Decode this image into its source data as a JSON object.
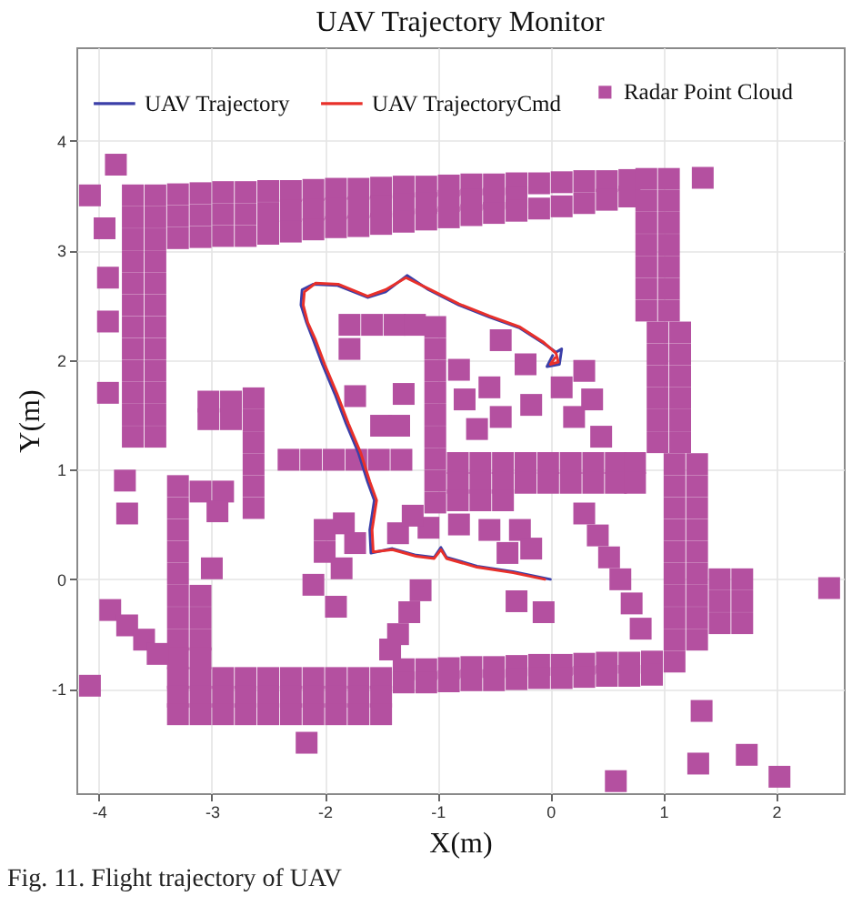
{
  "chart_data": {
    "type": "scatter",
    "title": "UAV Trajectory Monitor",
    "xlabel": "X(m)",
    "ylabel": "Y(m)",
    "annotations": [
      "Fig. 11. Flight trajectory of UAV"
    ],
    "xlim": [
      -4.2,
      2.6
    ],
    "ylim": [
      -1.95,
      4.85
    ],
    "xticks": [
      -4,
      -3,
      -2,
      -1,
      0,
      1,
      2
    ],
    "yticks": [
      -1,
      0,
      1,
      2,
      3,
      4
    ],
    "grid": true,
    "legend": "top",
    "series": [
      {
        "name": "UAV Trajectory",
        "type": "line",
        "color": "#3b3fa8",
        "x": [
          0.0,
          -0.33,
          -0.65,
          -0.92,
          -0.97,
          -1.03,
          -1.19,
          -1.4,
          -1.59,
          -1.6,
          -1.56,
          -1.62,
          -1.7,
          -1.81,
          -1.91,
          -2.02,
          -2.1,
          -2.16,
          -2.21,
          -2.2,
          -2.1,
          -1.89,
          -1.62,
          -1.46,
          -1.27,
          -1.08,
          -0.81,
          -0.54,
          -0.27,
          -0.06,
          0.05,
          0.1,
          0.08,
          -0.03,
          0.02
        ],
        "values": [
          0.0,
          0.07,
          0.12,
          0.2,
          0.29,
          0.2,
          0.22,
          0.28,
          0.24,
          0.45,
          0.72,
          0.89,
          1.15,
          1.42,
          1.69,
          1.96,
          2.18,
          2.34,
          2.5,
          2.64,
          2.69,
          2.68,
          2.57,
          2.62,
          2.77,
          2.64,
          2.5,
          2.39,
          2.29,
          2.15,
          2.07,
          2.1,
          1.96,
          1.94,
          2.04
        ]
      },
      {
        "name": "UAV TrajectoryCmd",
        "type": "line",
        "color": "#e8302a",
        "x": [
          -0.05,
          -0.33,
          -0.65,
          -0.92,
          -0.97,
          -1.03,
          -1.19,
          -1.4,
          -1.57,
          -1.58,
          -1.54,
          -1.6,
          -1.68,
          -1.79,
          -1.89,
          -2.0,
          -2.08,
          -2.15,
          -2.19,
          -2.18,
          -2.08,
          -1.88,
          -1.62,
          -1.46,
          -1.28,
          -1.08,
          -0.81,
          -0.54,
          -0.27,
          -0.06,
          0.05,
          0.07,
          0.0,
          0.04
        ],
        "values": [
          0.0,
          0.06,
          0.11,
          0.19,
          0.27,
          0.19,
          0.21,
          0.27,
          0.25,
          0.45,
          0.72,
          0.89,
          1.15,
          1.42,
          1.69,
          1.96,
          2.18,
          2.34,
          2.5,
          2.62,
          2.7,
          2.69,
          2.58,
          2.64,
          2.75,
          2.65,
          2.51,
          2.4,
          2.3,
          2.16,
          2.06,
          1.98,
          1.96,
          2.02
        ]
      },
      {
        "name": "Radar Point Cloud",
        "color": "#b450a0",
        "marker": "square",
        "x": [
          -3.7,
          -3.7,
          -3.7,
          -3.7,
          -3.7,
          -3.7,
          -3.7,
          -3.7,
          -3.7,
          -3.7,
          -3.7,
          -3.7,
          -3.5,
          -3.5,
          -3.5,
          -3.5,
          -3.5,
          -3.5,
          -3.5,
          -3.5,
          -3.5,
          -3.5,
          -3.5,
          -3.5,
          -3.3,
          -3.3,
          -3.3,
          -3.1,
          -3.1,
          -3.1,
          -2.9,
          -2.9,
          -2.9,
          -2.7,
          -2.7,
          -2.7,
          -2.5,
          -2.5,
          -2.5,
          -2.3,
          -2.3,
          -2.3,
          -2.1,
          -2.1,
          -2.1,
          -1.9,
          -1.9,
          -1.9,
          -1.7,
          -1.7,
          -1.7,
          -1.5,
          -1.5,
          -1.5,
          -1.3,
          -1.3,
          -1.3,
          -1.1,
          -1.1,
          -1.1,
          -0.9,
          -0.9,
          -0.9,
          -0.7,
          -0.7,
          -0.7,
          -0.5,
          -0.5,
          -0.5,
          -0.3,
          -0.3,
          -0.3,
          -0.1,
          -0.1,
          0.1,
          0.1,
          0.3,
          0.3,
          0.5,
          0.5,
          0.7,
          0.7,
          0.85,
          0.85,
          0.85,
          0.85,
          0.85,
          0.85,
          0.85,
          1.05,
          1.05,
          1.05,
          1.05,
          1.05,
          1.05,
          1.05,
          0.95,
          0.95,
          0.95,
          0.95,
          0.95,
          0.95,
          1.15,
          1.15,
          1.15,
          1.15,
          1.15,
          1.15,
          1.1,
          1.1,
          1.1,
          1.1,
          1.1,
          1.1,
          1.1,
          1.1,
          1.1,
          1.1,
          1.3,
          1.3,
          1.3,
          1.3,
          1.3,
          1.3,
          1.3,
          1.3,
          1.3,
          1.5,
          1.5,
          1.5,
          1.7,
          1.7,
          1.7,
          -3.3,
          -3.3,
          -3.3,
          -3.1,
          -3.1,
          -3.1,
          -2.9,
          -2.9,
          -2.9,
          -2.7,
          -2.7,
          -2.7,
          -2.5,
          -2.5,
          -2.5,
          -2.3,
          -2.3,
          -2.3,
          -2.1,
          -2.1,
          -2.1,
          -1.9,
          -1.9,
          -1.9,
          -1.7,
          -1.7,
          -1.7,
          -1.5,
          -1.5,
          -1.5,
          -1.3,
          -1.3,
          -1.1,
          -1.1,
          -0.9,
          -0.9,
          -0.7,
          -0.7,
          -0.5,
          -0.5,
          -0.3,
          -0.3,
          -0.1,
          -0.1,
          0.1,
          0.1,
          0.3,
          0.3,
          0.5,
          0.5,
          0.7,
          0.7,
          0.9,
          0.9,
          -3.3,
          -3.3,
          -3.3,
          -3.3,
          -3.3,
          -3.3,
          -3.3,
          -3.3,
          -3.3,
          -3.1,
          -3.1,
          -3.1,
          -3.1,
          -3.1,
          -2.9,
          -2.95,
          -2.63,
          -2.63,
          -2.63,
          -2.63,
          -2.63,
          -2.63,
          -3.03,
          -2.83,
          -3.03,
          -2.83,
          -2.32,
          -2.12,
          -1.92,
          -1.72,
          -1.52,
          -1.32,
          -1.02,
          -1.02,
          -1.02,
          -1.02,
          -1.02,
          -1.02,
          -1.02,
          -1.02,
          -1.02,
          -0.82,
          -0.82,
          -0.62,
          -0.62,
          -0.42,
          -0.42,
          -0.22,
          -0.22,
          -0.02,
          -0.02,
          0.18,
          0.18,
          0.38,
          0.38,
          0.58,
          0.58,
          0.75,
          0.75,
          -0.82,
          -0.62,
          -0.42,
          -1.78,
          -1.58,
          -1.38,
          -1.2,
          -1.78,
          -1.5,
          -1.34,
          -1.3,
          -1.73,
          -0.81,
          -0.76,
          -0.54,
          -0.44,
          -0.65,
          -0.22,
          -0.17,
          0.1,
          0.21,
          -0.44,
          0.3,
          0.37,
          0.45,
          -1.83,
          -1.73,
          -2.0,
          -1.35,
          -1.08,
          -1.22,
          -0.81,
          -0.54,
          -0.27,
          -0.17,
          -0.38,
          -1.15,
          -1.25,
          -1.35,
          -1.42,
          -2.0,
          -1.85,
          -2.1,
          -1.9,
          0.3,
          0.42,
          0.52,
          0.62,
          0.72,
          0.8,
          -0.3,
          -0.06,
          -3.0,
          -4.08,
          -3.85,
          1.35,
          2.47,
          -4.08,
          -2.16,
          0.58,
          1.31,
          1.74,
          2.03,
          1.34,
          -3.95,
          -3.92,
          -3.92,
          -3.92,
          -3.77,
          -3.75,
          -3.9,
          -3.75,
          -3.6,
          -3.48
        ],
        "values": [
          3.5,
          3.3,
          3.1,
          2.9,
          2.7,
          2.5,
          2.3,
          2.1,
          1.9,
          1.7,
          1.5,
          1.3,
          3.5,
          3.3,
          3.1,
          2.9,
          2.7,
          2.5,
          2.3,
          2.1,
          1.9,
          1.7,
          1.5,
          1.3,
          3.51,
          3.31,
          3.11,
          3.52,
          3.32,
          3.12,
          3.53,
          3.33,
          3.13,
          3.53,
          3.33,
          3.13,
          3.54,
          3.34,
          3.15,
          3.54,
          3.36,
          3.17,
          3.55,
          3.37,
          3.19,
          3.56,
          3.38,
          3.21,
          3.56,
          3.39,
          3.22,
          3.57,
          3.4,
          3.24,
          3.58,
          3.42,
          3.26,
          3.58,
          3.43,
          3.28,
          3.59,
          3.45,
          3.3,
          3.6,
          3.46,
          3.32,
          3.6,
          3.47,
          3.34,
          3.61,
          3.48,
          3.36,
          3.61,
          3.38,
          3.62,
          3.4,
          3.63,
          3.43,
          3.63,
          3.46,
          3.64,
          3.49,
          3.65,
          3.45,
          3.25,
          3.05,
          2.85,
          2.65,
          2.45,
          3.65,
          3.45,
          3.25,
          3.05,
          2.85,
          2.65,
          2.45,
          2.25,
          2.05,
          1.85,
          1.65,
          1.45,
          1.25,
          2.25,
          2.05,
          1.85,
          1.65,
          1.45,
          1.25,
          1.05,
          0.85,
          0.65,
          0.45,
          0.25,
          0.05,
          -0.15,
          -0.35,
          -0.55,
          -0.75,
          1.05,
          0.85,
          0.65,
          0.45,
          0.25,
          0.05,
          -0.15,
          -0.35,
          -0.55,
          0.0,
          -0.2,
          -0.4,
          0.0,
          -0.2,
          -0.4,
          -0.9,
          -1.07,
          -1.23,
          -0.9,
          -1.07,
          -1.23,
          -0.9,
          -1.07,
          -1.23,
          -0.9,
          -1.07,
          -1.23,
          -0.9,
          -1.07,
          -1.23,
          -0.9,
          -1.07,
          -1.23,
          -0.9,
          -1.07,
          -1.23,
          -0.9,
          -1.07,
          -1.23,
          -0.9,
          -1.07,
          -1.23,
          -0.9,
          -1.07,
          -1.23,
          -0.82,
          -0.94,
          -0.82,
          -0.94,
          -0.81,
          -0.93,
          -0.8,
          -0.92,
          -0.8,
          -0.92,
          -0.79,
          -0.91,
          -0.78,
          -0.9,
          -0.78,
          -0.9,
          -0.77,
          -0.89,
          -0.76,
          -0.88,
          -0.76,
          -0.88,
          -0.75,
          -0.87,
          0.85,
          0.65,
          0.45,
          0.25,
          0.05,
          -0.15,
          -0.35,
          -0.55,
          -0.72,
          -0.15,
          -0.35,
          -0.55,
          -0.72,
          0.8,
          0.8,
          0.62,
          1.65,
          1.45,
          1.25,
          1.05,
          0.85,
          0.65,
          1.62,
          1.62,
          1.46,
          1.46,
          1.09,
          1.09,
          1.09,
          1.09,
          1.09,
          1.09,
          2.3,
          2.1,
          1.9,
          1.7,
          1.5,
          1.3,
          1.1,
          0.9,
          0.7,
          1.06,
          0.88,
          1.06,
          0.88,
          1.06,
          0.88,
          1.06,
          0.88,
          1.06,
          0.88,
          1.06,
          0.88,
          1.06,
          0.88,
          1.06,
          0.88,
          1.06,
          0.88,
          0.72,
          0.72,
          0.72,
          2.32,
          2.32,
          2.32,
          2.32,
          2.1,
          1.4,
          1.4,
          1.69,
          1.67,
          1.91,
          1.64,
          1.75,
          1.48,
          1.37,
          1.96,
          1.59,
          1.75,
          1.48,
          2.18,
          1.9,
          1.64,
          1.3,
          0.51,
          0.33,
          0.45,
          0.42,
          0.47,
          0.58,
          0.5,
          0.45,
          0.45,
          0.28,
          0.24,
          -0.1,
          -0.3,
          -0.5,
          -0.64,
          0.25,
          0.1,
          -0.05,
          -0.25,
          0.6,
          0.4,
          0.2,
          0.0,
          -0.22,
          -0.45,
          -0.2,
          -0.3,
          0.1,
          3.5,
          3.78,
          3.66,
          -0.08,
          -0.97,
          -1.49,
          -1.84,
          -1.68,
          -1.6,
          -1.8,
          -1.2,
          3.2,
          2.75,
          2.35,
          1.7,
          0.9,
          0.6,
          -0.28,
          -0.42,
          -0.55,
          -0.68
        ]
      }
    ]
  }
}
